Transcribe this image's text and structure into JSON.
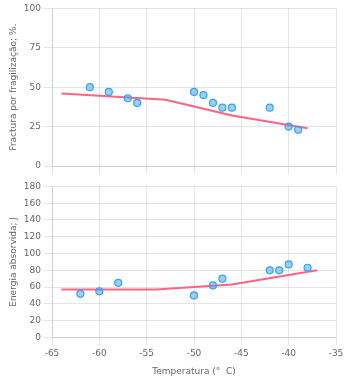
{
  "chart_data": [
    {
      "type": "scatter",
      "ylabel": "Fractura por fragilização; %.",
      "xlim": [
        -65,
        -35
      ],
      "xticks": [
        -65,
        -60,
        -55,
        -50,
        -45,
        -40,
        -35
      ],
      "ylim": [
        0,
        100
      ],
      "yticks": [
        0,
        25,
        50,
        75,
        100
      ],
      "grid": true,
      "tick_labels": "y",
      "series": [
        {
          "type": "scatter",
          "marker": "circle",
          "x": [
            -61,
            -59,
            -57,
            -56,
            -50,
            -49,
            -48,
            -47,
            -46,
            -42,
            -40,
            -39
          ],
          "values": [
            50,
            47,
            43,
            40,
            47,
            45,
            40,
            37,
            37,
            37,
            25,
            23
          ]
        },
        {
          "type": "line",
          "x": [
            -64,
            -53,
            -46,
            -38
          ],
          "values": [
            46,
            42,
            32,
            24
          ]
        }
      ]
    },
    {
      "type": "scatter",
      "xlabel": "Temperatura (°  C)",
      "ylabel": "Energia absorvida; J",
      "xlim": [
        -65,
        -35
      ],
      "xticks": [
        -65,
        -60,
        -55,
        -50,
        -45,
        -40,
        -35
      ],
      "ylim": [
        0,
        180
      ],
      "yticks": [
        0,
        20,
        40,
        60,
        80,
        100,
        120,
        140,
        160,
        180
      ],
      "grid": true,
      "series": [
        {
          "type": "scatter",
          "marker": "circle",
          "x": [
            -62,
            -60,
            -58,
            -50,
            -48,
            -47,
            -42,
            -41,
            -40,
            -38
          ],
          "values": [
            52,
            55,
            65,
            50,
            62,
            70,
            80,
            80,
            87,
            83
          ]
        },
        {
          "type": "line",
          "x": [
            -64,
            -54,
            -46,
            -37
          ],
          "values": [
            57,
            57,
            63,
            80
          ]
        }
      ]
    }
  ]
}
